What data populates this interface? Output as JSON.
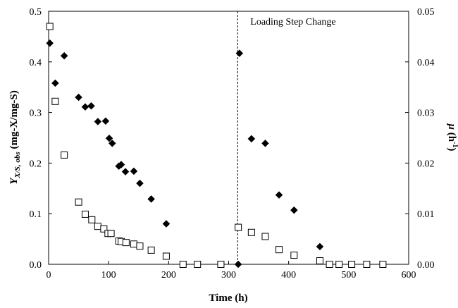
{
  "chart_data": {
    "type": "scatter",
    "xlabel": "Time (h)",
    "ylabel": {
      "main": "Y",
      "sub": "X/S, obs",
      "unit": "(mg-X/mg-S)"
    },
    "y2label": {
      "main": "μ",
      "unit_open": "(h",
      "unit_sup": "-1",
      "unit_close": ")"
    },
    "xlim": [
      0,
      600
    ],
    "ylim": [
      0,
      0.5
    ],
    "y2lim": [
      0,
      0.05
    ],
    "x_ticks": [
      "0",
      "100",
      "200",
      "300",
      "400",
      "500",
      "600"
    ],
    "y_ticks": [
      "0.0",
      "0.1",
      "0.2",
      "0.3",
      "0.4",
      "0.5"
    ],
    "y2_ticks": [
      "0.00",
      "0.01",
      "0.02",
      "0.03",
      "0.04",
      "0.05"
    ],
    "grid": false,
    "annotation": {
      "text": "Loading Step Change",
      "x": 315
    },
    "series": [
      {
        "marker": "filled-diamond",
        "axis": "left",
        "points": [
          [
            2,
            0.437
          ],
          [
            11,
            0.358
          ],
          [
            26,
            0.412
          ],
          [
            50,
            0.33
          ],
          [
            61,
            0.311
          ],
          [
            71,
            0.313
          ],
          [
            82,
            0.282
          ],
          [
            95,
            0.283
          ],
          [
            101,
            0.249
          ],
          [
            106,
            0.239
          ],
          [
            117,
            0.194
          ],
          [
            121,
            0.197
          ],
          [
            128,
            0.183
          ],
          [
            142,
            0.184
          ],
          [
            152,
            0.16
          ],
          [
            171,
            0.129
          ],
          [
            196,
            0.08
          ],
          [
            224,
            0.0
          ],
          [
            248,
            0.0
          ],
          [
            287,
            0.0
          ],
          [
            316,
            0.0
          ],
          [
            318,
            0.417
          ],
          [
            338,
            0.248
          ],
          [
            361,
            0.239
          ],
          [
            384,
            0.137
          ],
          [
            409,
            0.107
          ],
          [
            452,
            0.035
          ],
          [
            468,
            0.0
          ],
          [
            484,
            0.0
          ],
          [
            505,
            0.0
          ],
          [
            530,
            0.0
          ],
          [
            557,
            0.0
          ]
        ]
      },
      {
        "marker": "open-square",
        "axis": "right",
        "points": [
          [
            2,
            0.047
          ],
          [
            11,
            0.0322
          ],
          [
            26,
            0.0216
          ],
          [
            50,
            0.0123
          ],
          [
            61,
            0.0099
          ],
          [
            72,
            0.0088
          ],
          [
            82,
            0.0075
          ],
          [
            92,
            0.007
          ],
          [
            99,
            0.0061
          ],
          [
            104,
            0.0061
          ],
          [
            117,
            0.0046
          ],
          [
            121,
            0.0045
          ],
          [
            129,
            0.0043
          ],
          [
            142,
            0.004
          ],
          [
            152,
            0.0036
          ],
          [
            171,
            0.0028
          ],
          [
            196,
            0.0016
          ],
          [
            224,
            0.0
          ],
          [
            248,
            0.0
          ],
          [
            287,
            0.0
          ],
          [
            316,
            0.0073
          ],
          [
            338,
            0.0063
          ],
          [
            361,
            0.0055
          ],
          [
            384,
            0.0029
          ],
          [
            409,
            0.0018
          ],
          [
            452,
            0.0007
          ],
          [
            468,
            0.0
          ],
          [
            484,
            0.0
          ],
          [
            505,
            0.0
          ],
          [
            530,
            0.0
          ],
          [
            557,
            0.0
          ]
        ]
      }
    ]
  }
}
